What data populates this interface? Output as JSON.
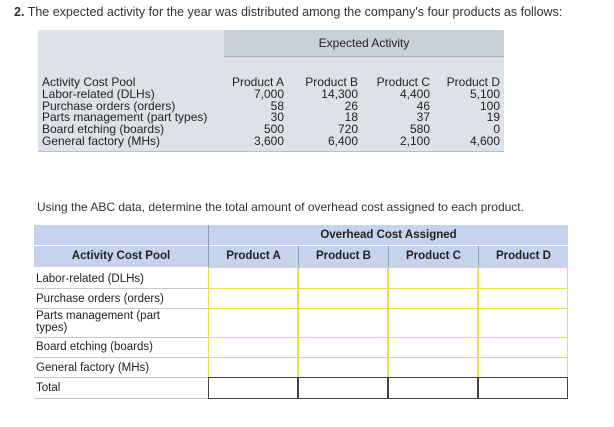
{
  "question": {
    "number": "2.",
    "text": "The expected activity for the year was distributed among the company's four products as follows:"
  },
  "activity_table": {
    "group_header": "Expected Activity",
    "label_header": "Activity Cost Pool",
    "product_headers": [
      "Product A",
      "Product B",
      "Product C",
      "Product D"
    ],
    "rows": [
      {
        "label": "Labor-related (DLHs)",
        "values": [
          "7,000",
          "14,300",
          "4,400",
          "5,100"
        ]
      },
      {
        "label": "Purchase orders (orders)",
        "values": [
          "58",
          "26",
          "46",
          "100"
        ]
      },
      {
        "label": "Parts management (part types)",
        "values": [
          "30",
          "18",
          "37",
          "19"
        ]
      },
      {
        "label": "Board etching (boards)",
        "values": [
          "500",
          "720",
          "580",
          "0"
        ]
      },
      {
        "label": "General factory (MHs)",
        "values": [
          "3,600",
          "6,400",
          "2,100",
          "4,600"
        ]
      }
    ]
  },
  "instruction": "Using the ABC data, determine the total amount of overhead cost assigned to each product.",
  "answer_table": {
    "group_header": "Overhead Cost Assigned",
    "label_header": "Activity Cost Pool",
    "product_headers": [
      "Product A",
      "Product B",
      "Product C",
      "Product D"
    ],
    "rows": [
      {
        "label_line1": "Labor-related (DLHs)",
        "label_line2": ""
      },
      {
        "label_line1": "Purchase orders (orders)",
        "label_line2": ""
      },
      {
        "label_line1": "Parts management (part",
        "label_line2": "types)"
      },
      {
        "label_line1": "Board etching (boards)",
        "label_line2": ""
      },
      {
        "label_line1": "General factory (MHs)",
        "label_line2": ""
      },
      {
        "label_line1": "Total",
        "label_line2": ""
      }
    ]
  },
  "colors": {
    "table1_bg": "#dde2e8",
    "table1_header": "#c8d0da",
    "table2_header": "#c5d3ef",
    "input_border": "#e8e04a",
    "total_border": "#444444"
  }
}
